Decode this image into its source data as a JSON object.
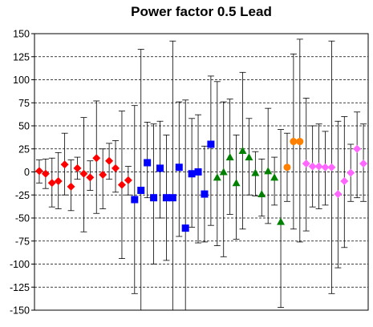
{
  "chart_data": {
    "type": "scatter",
    "title": "Power factor 0.5 Lead",
    "xlabel": "",
    "ylabel": "",
    "ylim": [
      -150,
      150
    ],
    "y_ticks": [
      150,
      125,
      100,
      75,
      50,
      25,
      0,
      -25,
      -50,
      -75,
      -100,
      -125,
      -150
    ],
    "grid": "horizontal dashed",
    "legend": "none",
    "series": [
      {
        "color": "#ff0000",
        "marker": "diamond",
        "points": [
          {
            "x": 1,
            "y": 1,
            "err_high": 13,
            "err_low": -12
          },
          {
            "x": 2,
            "y": -2,
            "err_high": 14,
            "err_low": -18
          },
          {
            "x": 3,
            "y": -12,
            "err_high": 15,
            "err_low": -38
          },
          {
            "x": 4,
            "y": -10,
            "err_high": 21,
            "err_low": -40
          },
          {
            "x": 5,
            "y": 8,
            "err_high": 42,
            "err_low": -25
          },
          {
            "x": 6,
            "y": -16,
            "err_high": 13,
            "err_low": -42
          },
          {
            "x": 7,
            "y": 4,
            "err_high": 16,
            "err_low": -8
          },
          {
            "x": 8,
            "y": -2,
            "err_high": 59,
            "err_low": -65
          },
          {
            "x": 9,
            "y": -6,
            "err_high": 12,
            "err_low": -20
          },
          {
            "x": 10,
            "y": 15,
            "err_high": 77,
            "err_low": -45
          },
          {
            "x": 11,
            "y": -3,
            "err_high": 25,
            "err_low": -40
          },
          {
            "x": 12,
            "y": 12,
            "err_high": 31,
            "err_low": -8
          },
          {
            "x": 13,
            "y": 4,
            "err_high": 34,
            "err_low": -22
          },
          {
            "x": 14,
            "y": -14,
            "err_high": 66,
            "err_low": -94
          },
          {
            "x": 15,
            "y": -9,
            "err_high": 6,
            "err_low": -25
          }
        ]
      },
      {
        "color": "#0000ff",
        "marker": "square",
        "points": [
          {
            "x": 16,
            "y": -30,
            "err_high": 72,
            "err_low": -132
          },
          {
            "x": 17,
            "y": -20,
            "err_high": 133,
            "err_low": -150
          },
          {
            "x": 18,
            "y": 10,
            "err_high": 54,
            "err_low": -28
          },
          {
            "x": 19,
            "y": -28,
            "err_high": 52,
            "err_low": -100
          },
          {
            "x": 20,
            "y": 4,
            "err_high": 55,
            "err_low": -50
          },
          {
            "x": 21,
            "y": -28,
            "err_high": 40,
            "err_low": -96
          },
          {
            "x": 22,
            "y": -28,
            "err_high": 142,
            "err_low": -150
          },
          {
            "x": 23,
            "y": 5,
            "err_high": 76,
            "err_low": -70
          },
          {
            "x": 24,
            "y": -61,
            "err_high": 78,
            "err_low": -150
          },
          {
            "x": 25,
            "y": -2,
            "err_high": 58,
            "err_low": -60
          },
          {
            "x": 26,
            "y": 0,
            "err_high": 62,
            "err_low": -77
          },
          {
            "x": 27,
            "y": -24,
            "err_high": 28,
            "err_low": -76
          },
          {
            "x": 28,
            "y": 30,
            "err_high": 104,
            "err_low": -58
          }
        ]
      },
      {
        "color": "#008000",
        "marker": "triangle",
        "points": [
          {
            "x": 29,
            "y": -6,
            "err_high": 98,
            "err_low": -80
          },
          {
            "x": 30,
            "y": 0,
            "err_high": 76,
            "err_low": -92
          },
          {
            "x": 31,
            "y": 16,
            "err_high": 79,
            "err_low": -46
          },
          {
            "x": 32,
            "y": -12,
            "err_high": 40,
            "err_low": -73
          },
          {
            "x": 33,
            "y": 23,
            "err_high": 108,
            "err_low": -62
          },
          {
            "x": 34,
            "y": 16,
            "err_high": 58,
            "err_low": -25
          },
          {
            "x": 35,
            "y": -1,
            "err_high": 22,
            "err_low": -26
          },
          {
            "x": 36,
            "y": -24,
            "err_high": 14,
            "err_low": -48
          },
          {
            "x": 37,
            "y": 1,
            "err_high": 69,
            "err_low": -56
          },
          {
            "x": 38,
            "y": -6,
            "err_high": 16,
            "err_low": -36
          },
          {
            "x": 39,
            "y": -54,
            "err_high": 46,
            "err_low": -147
          }
        ]
      },
      {
        "color": "#ff8000",
        "marker": "circle",
        "points": [
          {
            "x": 40,
            "y": 5,
            "err_high": 42,
            "err_low": -32
          },
          {
            "x": 41,
            "y": 33,
            "err_high": 128,
            "err_low": -62
          },
          {
            "x": 42,
            "y": 33,
            "err_high": 144,
            "err_low": -76
          }
        ]
      },
      {
        "color": "#ff66ff",
        "marker": "diamond",
        "points": [
          {
            "x": 43,
            "y": 9,
            "err_high": 80,
            "err_low": -64
          },
          {
            "x": 44,
            "y": 6,
            "err_high": 50,
            "err_low": -38
          },
          {
            "x": 45,
            "y": 6,
            "err_high": 52,
            "err_low": -40
          },
          {
            "x": 46,
            "y": 5,
            "err_high": 44,
            "err_low": -36
          },
          {
            "x": 47,
            "y": 5,
            "err_high": 142,
            "err_low": -132
          },
          {
            "x": 48,
            "y": -24,
            "err_high": 55,
            "err_low": -104
          },
          {
            "x": 49,
            "y": -10,
            "err_high": 60,
            "err_low": -82
          },
          {
            "x": 50,
            "y": -1,
            "err_high": 30,
            "err_low": -32
          },
          {
            "x": 51,
            "y": 25,
            "err_high": 65,
            "err_low": -28
          },
          {
            "x": 52,
            "y": 9,
            "err_high": 52,
            "err_low": -32
          }
        ]
      }
    ]
  }
}
